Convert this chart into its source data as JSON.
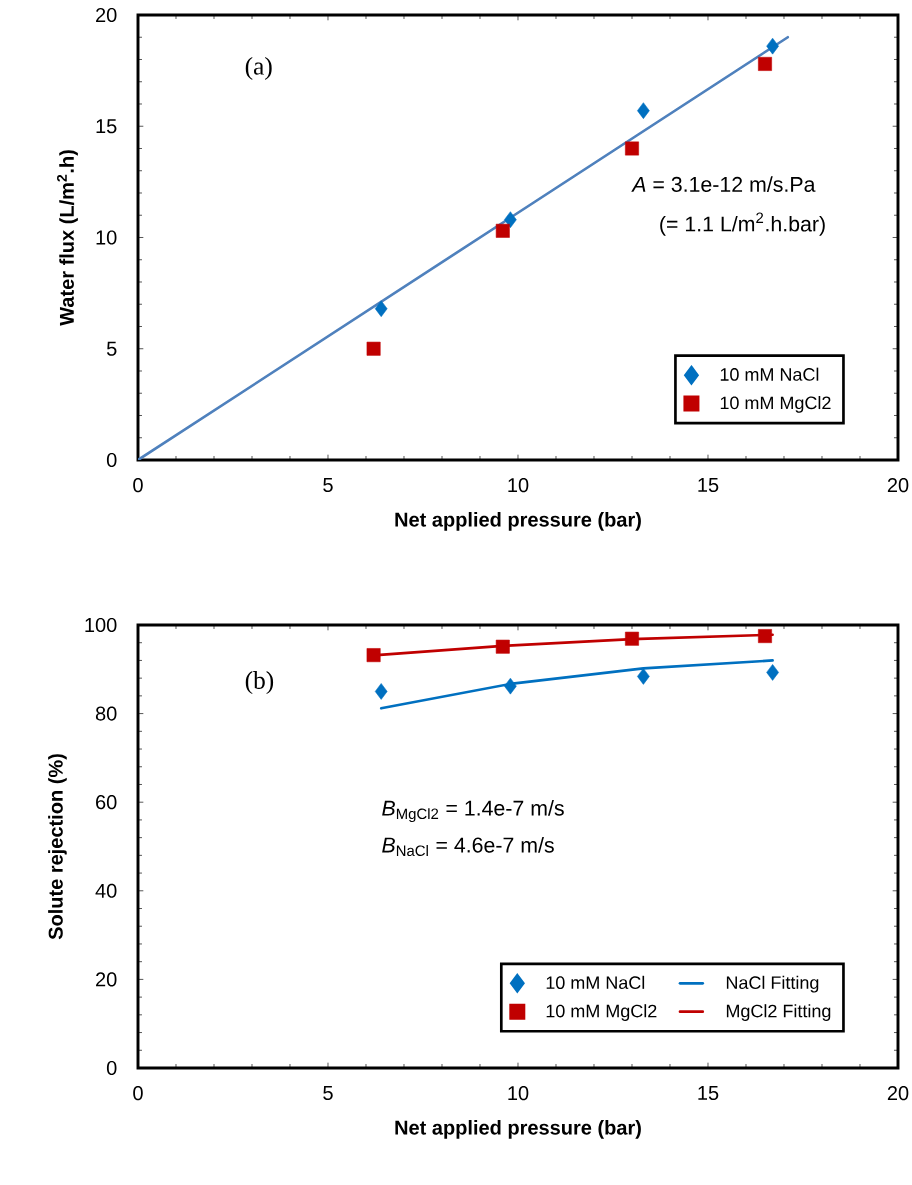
{
  "chart_data": [
    {
      "type": "scatter",
      "xlabel": "Net applied pressure (bar)",
      "ylabel": "Water flux (L/m$^{2}$.h)",
      "xlim": [
        0,
        20
      ],
      "ylim": [
        0,
        20
      ],
      "xticks": [
        0,
        5,
        10,
        15,
        20
      ],
      "yticks": [
        0,
        5,
        10,
        15,
        20
      ],
      "grid": false,
      "legend": "bottom right",
      "annotations": [
        "(a)",
        "*A* = 3.1e-12 m/s.Pa",
        "(= 1.1 L/m$^{2}$.h.bar)"
      ],
      "series": [
        {
          "name": "10 mM NaCl",
          "color": "#0070c0",
          "marker": "diamond",
          "x": [
            6.4,
            9.8,
            13.3,
            16.7
          ],
          "values": [
            6.8,
            10.8,
            15.7,
            18.6
          ]
        },
        {
          "name": "10 mM MgCl2",
          "color": "#c00000",
          "marker": "square",
          "x": [
            6.2,
            9.6,
            13.0,
            16.5
          ],
          "values": [
            5.0,
            10.3,
            14.0,
            17.8
          ]
        },
        {
          "type": "line",
          "color": "#4f81bd",
          "marker": "none",
          "x": [
            0,
            17.1
          ],
          "values": [
            0,
            19.0
          ]
        }
      ]
    },
    {
      "type": "scatter",
      "xlabel": "Net applied pressure (bar)",
      "ylabel": "Solute rejection (%)",
      "xlim": [
        0,
        20
      ],
      "ylim": [
        0,
        100
      ],
      "xticks": [
        0,
        5,
        10,
        15,
        20
      ],
      "yticks": [
        0,
        20,
        40,
        60,
        80,
        100
      ],
      "grid": false,
      "legend": "bottom right",
      "annotations": [
        "(b)",
        "*B*$_{MgCl2}$ = 1.4e-7 m/s",
        "*B*$_{NaCl}$ = 4.6e-7 m/s"
      ],
      "series": [
        {
          "name": "10 mM NaCl",
          "color": "#0070c0",
          "marker": "diamond",
          "x": [
            6.4,
            9.8,
            13.3,
            16.7
          ],
          "values": [
            85.0,
            86.2,
            88.4,
            89.3
          ]
        },
        {
          "type": "line",
          "name": "NaCl Fitting",
          "color": "#0070c0",
          "marker": "none",
          "x": [
            6.4,
            9.8,
            13.3,
            16.7
          ],
          "values": [
            81.2,
            86.7,
            90.2,
            92.0
          ]
        },
        {
          "name": "10 mM MgCl2",
          "color": "#c00000",
          "marker": "square",
          "x": [
            6.2,
            9.6,
            13.0,
            16.5
          ],
          "values": [
            93.2,
            95.1,
            96.9,
            97.5
          ]
        },
        {
          "type": "line",
          "name": "MgCl2 Fitting",
          "color": "#c00000",
          "marker": "none",
          "x": [
            6.1,
            9.6,
            13.0,
            16.7
          ],
          "values": [
            93.1,
            95.3,
            96.8,
            97.8
          ]
        }
      ]
    }
  ]
}
